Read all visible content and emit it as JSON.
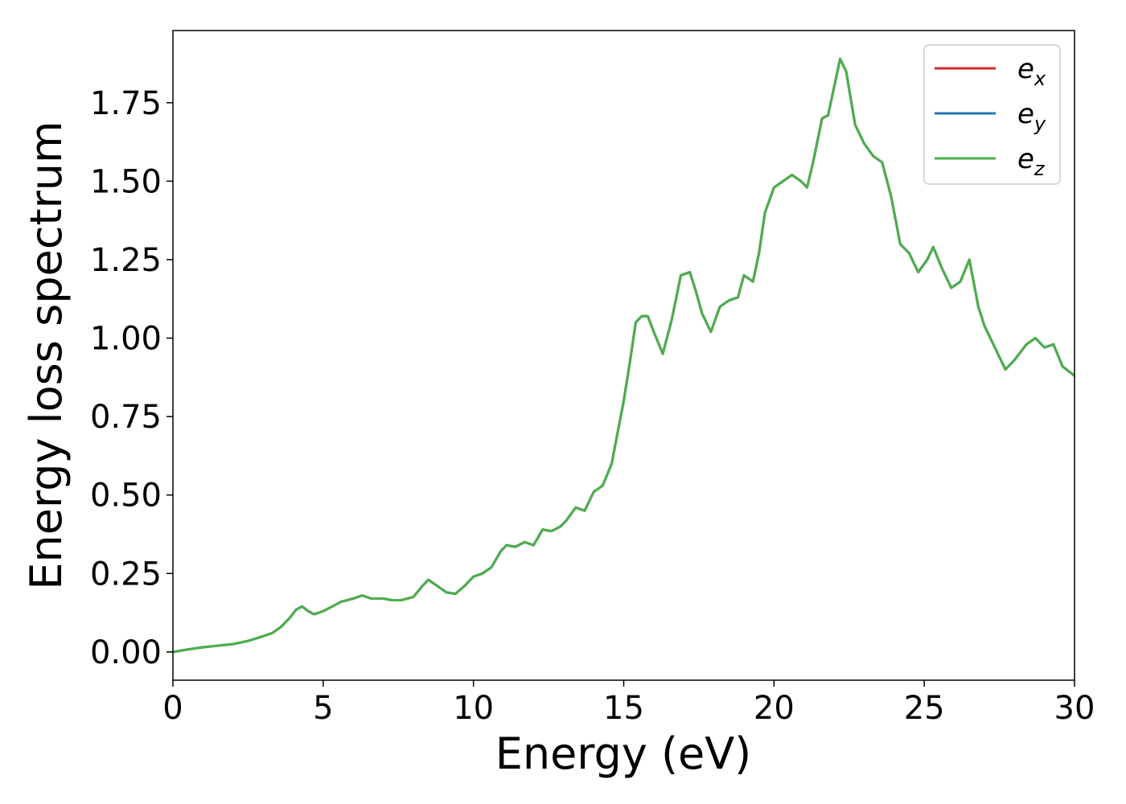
{
  "chart_data": {
    "type": "line",
    "title": "",
    "xlabel": "Energy (eV)",
    "ylabel": "Energy loss spectrum",
    "xlim": [
      0,
      30
    ],
    "ylim": [
      -0.09,
      1.98
    ],
    "xticks": [
      0,
      5,
      10,
      15,
      20,
      25,
      30
    ],
    "xtick_labels": [
      "0",
      "5",
      "10",
      "15",
      "20",
      "25",
      "30"
    ],
    "yticks": [
      0.0,
      0.25,
      0.5,
      0.75,
      1.0,
      1.25,
      1.5,
      1.75
    ],
    "ytick_labels": [
      "0.00",
      "0.25",
      "0.50",
      "0.75",
      "1.00",
      "1.25",
      "1.50",
      "1.75"
    ],
    "grid": false,
    "legend_position": "top-right",
    "x": [
      0,
      0.5,
      1,
      1.5,
      2,
      2.5,
      3,
      3.3,
      3.6,
      3.9,
      4.1,
      4.3,
      4.5,
      4.7,
      5.0,
      5.3,
      5.6,
      6.0,
      6.3,
      6.6,
      7.0,
      7.3,
      7.6,
      8.0,
      8.3,
      8.5,
      8.8,
      9.1,
      9.4,
      9.7,
      10.0,
      10.3,
      10.6,
      10.9,
      11.1,
      11.4,
      11.7,
      12.0,
      12.3,
      12.6,
      12.9,
      13.1,
      13.4,
      13.7,
      14.0,
      14.3,
      14.6,
      14.8,
      15.0,
      15.2,
      15.4,
      15.6,
      15.8,
      16.0,
      16.3,
      16.6,
      16.9,
      17.2,
      17.4,
      17.6,
      17.9,
      18.2,
      18.5,
      18.8,
      19.0,
      19.3,
      19.5,
      19.7,
      20.0,
      20.3,
      20.6,
      20.9,
      21.1,
      21.3,
      21.6,
      21.8,
      22.0,
      22.2,
      22.4,
      22.7,
      23.0,
      23.3,
      23.6,
      23.9,
      24.2,
      24.5,
      24.8,
      25.1,
      25.3,
      25.6,
      25.9,
      26.2,
      26.5,
      26.8,
      27.0,
      27.3,
      27.7,
      28.0,
      28.4,
      28.7,
      29.0,
      29.3,
      29.6,
      30.0
    ],
    "series": [
      {
        "name": "e_x",
        "label_base": "e",
        "label_sub": "x",
        "color": "#d62728",
        "values": [
          0.0,
          0.008,
          0.015,
          0.02,
          0.025,
          0.035,
          0.05,
          0.06,
          0.08,
          0.11,
          0.135,
          0.145,
          0.13,
          0.12,
          0.13,
          0.145,
          0.16,
          0.17,
          0.18,
          0.17,
          0.17,
          0.165,
          0.165,
          0.175,
          0.21,
          0.23,
          0.21,
          0.19,
          0.185,
          0.21,
          0.24,
          0.25,
          0.27,
          0.32,
          0.34,
          0.335,
          0.35,
          0.34,
          0.39,
          0.385,
          0.4,
          0.42,
          0.46,
          0.45,
          0.51,
          0.53,
          0.6,
          0.7,
          0.8,
          0.92,
          1.05,
          1.07,
          1.07,
          1.02,
          0.95,
          1.06,
          1.2,
          1.21,
          1.15,
          1.08,
          1.02,
          1.1,
          1.12,
          1.13,
          1.2,
          1.18,
          1.27,
          1.4,
          1.48,
          1.5,
          1.52,
          1.5,
          1.48,
          1.56,
          1.7,
          1.71,
          1.8,
          1.89,
          1.85,
          1.68,
          1.62,
          1.58,
          1.56,
          1.45,
          1.3,
          1.27,
          1.21,
          1.25,
          1.29,
          1.22,
          1.16,
          1.18,
          1.25,
          1.1,
          1.04,
          0.98,
          0.9,
          0.93,
          0.98,
          1.0,
          0.97,
          0.98,
          0.91,
          0.88
        ]
      },
      {
        "name": "e_y",
        "label_base": "e",
        "label_sub": "y",
        "color": "#1f77b4",
        "values": [
          0.0,
          0.008,
          0.015,
          0.02,
          0.025,
          0.035,
          0.05,
          0.06,
          0.08,
          0.11,
          0.135,
          0.145,
          0.13,
          0.12,
          0.13,
          0.145,
          0.16,
          0.17,
          0.18,
          0.17,
          0.17,
          0.165,
          0.165,
          0.175,
          0.21,
          0.23,
          0.21,
          0.19,
          0.185,
          0.21,
          0.24,
          0.25,
          0.27,
          0.32,
          0.34,
          0.335,
          0.35,
          0.34,
          0.39,
          0.385,
          0.4,
          0.42,
          0.46,
          0.45,
          0.51,
          0.53,
          0.6,
          0.7,
          0.8,
          0.92,
          1.05,
          1.07,
          1.07,
          1.02,
          0.95,
          1.06,
          1.2,
          1.21,
          1.15,
          1.08,
          1.02,
          1.1,
          1.12,
          1.13,
          1.2,
          1.18,
          1.27,
          1.4,
          1.48,
          1.5,
          1.52,
          1.5,
          1.48,
          1.56,
          1.7,
          1.71,
          1.8,
          1.89,
          1.85,
          1.68,
          1.62,
          1.58,
          1.56,
          1.45,
          1.3,
          1.27,
          1.21,
          1.25,
          1.29,
          1.22,
          1.16,
          1.18,
          1.25,
          1.1,
          1.04,
          0.98,
          0.9,
          0.93,
          0.98,
          1.0,
          0.97,
          0.98,
          0.91,
          0.88
        ]
      },
      {
        "name": "e_z",
        "label_base": "e",
        "label_sub": "z",
        "color": "#4daf4a",
        "values": [
          0.0,
          0.008,
          0.015,
          0.02,
          0.025,
          0.035,
          0.05,
          0.06,
          0.08,
          0.11,
          0.135,
          0.145,
          0.13,
          0.12,
          0.13,
          0.145,
          0.16,
          0.17,
          0.18,
          0.17,
          0.17,
          0.165,
          0.165,
          0.175,
          0.21,
          0.23,
          0.21,
          0.19,
          0.185,
          0.21,
          0.24,
          0.25,
          0.27,
          0.32,
          0.34,
          0.335,
          0.35,
          0.34,
          0.39,
          0.385,
          0.4,
          0.42,
          0.46,
          0.45,
          0.51,
          0.53,
          0.6,
          0.7,
          0.8,
          0.92,
          1.05,
          1.07,
          1.07,
          1.02,
          0.95,
          1.06,
          1.2,
          1.21,
          1.15,
          1.08,
          1.02,
          1.1,
          1.12,
          1.13,
          1.2,
          1.18,
          1.27,
          1.4,
          1.48,
          1.5,
          1.52,
          1.5,
          1.48,
          1.56,
          1.7,
          1.71,
          1.8,
          1.89,
          1.85,
          1.68,
          1.62,
          1.58,
          1.56,
          1.45,
          1.3,
          1.27,
          1.21,
          1.25,
          1.29,
          1.22,
          1.16,
          1.18,
          1.25,
          1.1,
          1.04,
          0.98,
          0.9,
          0.93,
          0.98,
          1.0,
          0.97,
          0.98,
          0.91,
          0.88
        ]
      }
    ]
  }
}
